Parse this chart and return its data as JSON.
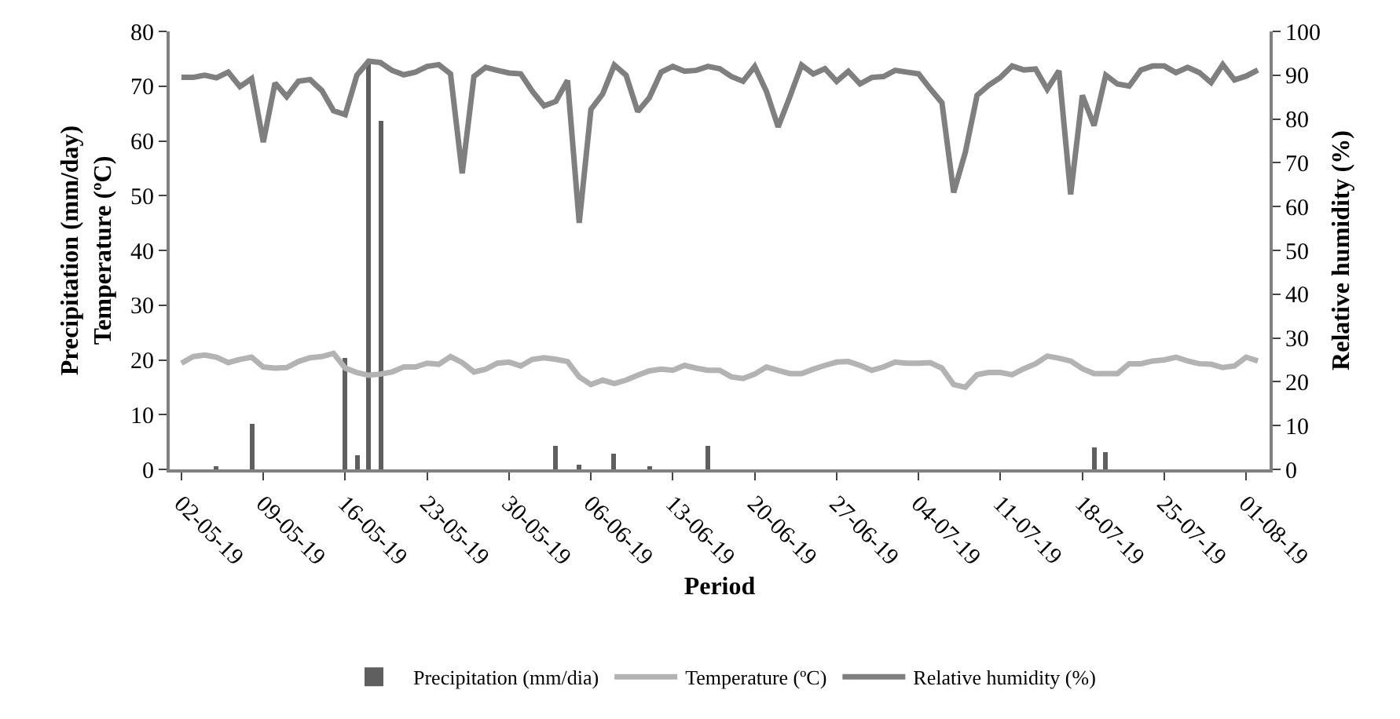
{
  "chart_data": {
    "type": "bar",
    "xlabel": "Period",
    "ylabel": "Precipitation (mm/day)\nTemperature (ºC)",
    "y2label": "Relative humidity (%)",
    "x": [
      "--05-02",
      "--05-03",
      "--05-04",
      "--05-05",
      "--05-06",
      "--05-07",
      "--05-08",
      "--05-09",
      "--05-10",
      "--05-11",
      "--05-12",
      "--05-13",
      "--05-14",
      "--05-15",
      "--05-16",
      "--05-17",
      "--05-18",
      "--05-19",
      "--05-20",
      "--05-21",
      "--05-22",
      "--05-23",
      "--05-24",
      "--05-25",
      "--05-26",
      "--05-27",
      "--05-28",
      "--05-29",
      "--05-30",
      "--05-31",
      "--06-01",
      "--06-02",
      "--06-03",
      "--06-04",
      "--06-05",
      "--06-06",
      "--06-07",
      "--06-08",
      "--06-09",
      "--06-10",
      "--06-11",
      "--06-12",
      "--06-13",
      "--06-14",
      "--06-15",
      "--06-16",
      "--06-17",
      "--06-18",
      "--06-19",
      "--06-20",
      "--06-21",
      "--06-22",
      "--06-23",
      "--06-24",
      "--06-25",
      "--06-26",
      "--06-27",
      "--06-28",
      "--06-29",
      "--06-30",
      "--07-01",
      "--07-02",
      "--07-03",
      "--07-04",
      "--07-05",
      "--07-06",
      "--07-07",
      "--07-08",
      "--07-09",
      "--07-10",
      "--07-11",
      "--07-12",
      "--07-13",
      "--07-14",
      "--07-15",
      "--07-16",
      "--07-17",
      "--07-18",
      "--07-19",
      "--07-20",
      "--07-21",
      "--07-22",
      "--07-23",
      "--07-24",
      "--07-25",
      "--07-26",
      "--07-27",
      "--07-28",
      "--07-29",
      "--07-30",
      "--07-31",
      "--08-01",
      "--08-02"
    ],
    "series": [
      {
        "name": "Precipitation (mm/dia)",
        "color": "#5f5f5f",
        "values": [
          0,
          0,
          0,
          0.3,
          0,
          0,
          8.4,
          0,
          0,
          0,
          0,
          0,
          0,
          0,
          20.3,
          2.6,
          74.8,
          63.8,
          0,
          0,
          0,
          0,
          0,
          0,
          0,
          0,
          0,
          0,
          0,
          0,
          0,
          0,
          4.2,
          0,
          0.9,
          0,
          0,
          3.0,
          0,
          0,
          0.6,
          0,
          0,
          0,
          0,
          4.2,
          0,
          0,
          0,
          0,
          0,
          0,
          0,
          0,
          0,
          0,
          0,
          0,
          0,
          0,
          0,
          0,
          0,
          0,
          0,
          0,
          0,
          0,
          0,
          0,
          0,
          0,
          0,
          0,
          0,
          0,
          0,
          0,
          4.0,
          3.1,
          0,
          0,
          0,
          0,
          0,
          0,
          0,
          0,
          0,
          0,
          0,
          0,
          0
        ]
      },
      {
        "name": "Temperature (ºC)",
        "type": "line",
        "color": "#b3b3b3",
        "values": [
          19.4,
          20.6,
          20.9,
          20.5,
          19.5,
          20.1,
          20.5,
          18.7,
          18.5,
          18.6,
          19.7,
          20.4,
          20.6,
          21.2,
          18.5,
          17.7,
          17.2,
          17.4,
          17.8,
          18.7,
          18.7,
          19.4,
          19.2,
          20.6,
          19.5,
          17.8,
          18.3,
          19.4,
          19.6,
          18.9,
          20.1,
          20.4,
          20.1,
          19.7,
          16.9,
          15.5,
          16.3,
          15.7,
          16.3,
          17.2,
          18,
          18.3,
          18.1,
          19,
          18.5,
          18.1,
          18.1,
          16.9,
          16.6,
          17.4,
          18.7,
          18.1,
          17.5,
          17.5,
          18.3,
          19,
          19.6,
          19.7,
          19,
          18.1,
          18.7,
          19.6,
          19.4,
          19.4,
          19.5,
          18.5,
          15.5,
          15,
          17.3,
          17.7,
          17.7,
          17.3,
          18.4,
          19.3,
          20.7,
          20.3,
          19.8,
          18.4,
          17.5,
          17.5,
          17.5,
          19.3,
          19.3,
          19.8,
          20,
          20.5,
          19.8,
          19.3,
          19.2,
          18.6,
          18.9,
          20.5,
          19.8
        ]
      },
      {
        "name": "Relative humidity (%)",
        "type": "line",
        "axis": "y2",
        "color": "#7f7f7f",
        "values": [
          89.5,
          89.5,
          90,
          89.4,
          90.7,
          87.4,
          89.2,
          74.7,
          88.2,
          85.1,
          88.6,
          89,
          86.5,
          81.9,
          81,
          90,
          93.2,
          92.9,
          91.1,
          90.1,
          90.7,
          92,
          92.4,
          90.3,
          67.6,
          89.7,
          91.8,
          91.1,
          90.5,
          90.3,
          86.3,
          83,
          84,
          88.8,
          56.3,
          82.2,
          85.7,
          92.3,
          90,
          81.7,
          84.9,
          90.7,
          92,
          90.9,
          91.1,
          92,
          91.5,
          89.7,
          88.6,
          92,
          86.3,
          78.2,
          85.1,
          92.3,
          90.3,
          91.5,
          88.6,
          90.9,
          88,
          89.5,
          89.7,
          91.1,
          90.7,
          90.3,
          86.9,
          83.7,
          63.2,
          72.4,
          85.4,
          87.7,
          89.5,
          92.1,
          91.2,
          91.4,
          86.8,
          91,
          62.8,
          85.4,
          78.5,
          90,
          88,
          87.5,
          91.2,
          92.1,
          92.1,
          90.6,
          91.8,
          90.6,
          88.3,
          92.4,
          88.9,
          89.8,
          91.2
        ]
      }
    ],
    "xlim": [
      "--05-01",
      "--08-03"
    ],
    "xticks": [
      {
        "value": "--05-02",
        "label": "02-05-19"
      },
      {
        "value": "--05-09",
        "label": "09-05-19"
      },
      {
        "value": "--05-16",
        "label": "16-05-19"
      },
      {
        "value": "--05-23",
        "label": "23-05-19"
      },
      {
        "value": "--05-30",
        "label": "30-05-19"
      },
      {
        "value": "--06-06",
        "label": "06-06-19"
      },
      {
        "value": "--06-13",
        "label": "13-06-19"
      },
      {
        "value": "--06-20",
        "label": "20-06-19"
      },
      {
        "value": "--06-27",
        "label": "27-06-19"
      },
      {
        "value": "--07-04",
        "label": "04-07-19"
      },
      {
        "value": "--07-11",
        "label": "11-07-19"
      },
      {
        "value": "--07-18",
        "label": "18-07-19"
      },
      {
        "value": "--07-25",
        "label": "25-07-19"
      },
      {
        "value": "--08-01",
        "label": "01-08-19"
      }
    ],
    "ylim": [
      0,
      80
    ],
    "yticks": [
      0,
      10,
      20,
      30,
      40,
      50,
      60,
      70,
      80
    ],
    "y2lim": [
      0,
      100
    ],
    "y2ticks": [
      0,
      10,
      20,
      30,
      40,
      50,
      60,
      70,
      80,
      90,
      100
    ],
    "grid": false,
    "legend": "bottom",
    "marker": "none",
    "line_style": "solid"
  }
}
